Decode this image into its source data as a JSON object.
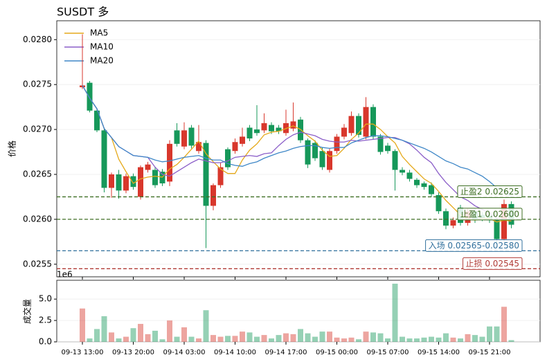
{
  "chart_data": {
    "type": "candlestick",
    "title": "SUSDT  多",
    "ylabel": "价格",
    "categories": [
      "09-13 13:00",
      null,
      null,
      null,
      null,
      null,
      null,
      "09-13 20:00",
      null,
      null,
      null,
      null,
      null,
      null,
      "09-14 03:00",
      null,
      null,
      null,
      null,
      null,
      null,
      "09-14 10:00",
      null,
      null,
      null,
      null,
      null,
      null,
      "09-14 17:00",
      null,
      null,
      null,
      null,
      null,
      null,
      "09-15 00:00",
      null,
      null,
      null,
      null,
      null,
      null,
      "09-15 07:00",
      null,
      null,
      null,
      null,
      null,
      null,
      "09-15 14:00",
      null,
      null,
      null,
      null,
      null,
      null,
      "09-15 21:00",
      null,
      null,
      null
    ],
    "open": [
      0.02747,
      0.02752,
      0.02721,
      0.02699,
      0.02635,
      0.0265,
      0.02632,
      0.02648,
      0.02625,
      0.02655,
      0.02655,
      0.02653,
      0.02642,
      0.02699,
      0.02681,
      0.02702,
      0.02676,
      0.02685,
      0.02615,
      0.02638,
      0.02678,
      0.02676,
      0.02684,
      0.02702,
      0.027,
      0.02699,
      0.02705,
      0.02702,
      0.02696,
      0.02701,
      0.02711,
      0.02688,
      0.02685,
      0.02676,
      0.02655,
      0.02676,
      0.02692,
      0.02696,
      0.02715,
      0.02692,
      0.02725,
      0.02692,
      0.02682,
      0.02676,
      0.02655,
      0.02652,
      0.02644,
      0.0264,
      0.02638,
      0.02627,
      0.02609,
      0.02593,
      0.02613,
      0.02596,
      0.02609,
      0.02605,
      0.02604,
      0.02599,
      0.02578,
      0.02617
    ],
    "high": [
      0.02806,
      0.02754,
      0.02723,
      0.02701,
      0.02652,
      0.02655,
      0.02651,
      0.02651,
      0.0266,
      0.02664,
      0.02658,
      0.02656,
      0.02688,
      0.02707,
      0.02708,
      0.02705,
      0.02705,
      0.02688,
      0.0264,
      0.02663,
      0.0268,
      0.0269,
      0.02702,
      0.02705,
      0.02727,
      0.02718,
      0.02708,
      0.02705,
      0.02722,
      0.0273,
      0.02714,
      0.0269,
      0.02688,
      0.0268,
      0.02679,
      0.02695,
      0.02706,
      0.0272,
      0.02718,
      0.02736,
      0.02728,
      0.02695,
      0.02685,
      0.02678,
      0.02658,
      0.02655,
      0.02646,
      0.02642,
      0.02641,
      0.0263,
      0.02612,
      0.02602,
      0.02616,
      0.02612,
      0.02612,
      0.02608,
      0.02607,
      0.02602,
      0.02622,
      0.0262
    ],
    "low": [
      0.02745,
      0.02719,
      0.02697,
      0.0263,
      0.02624,
      0.02623,
      0.02629,
      0.02633,
      0.02622,
      0.02652,
      0.02635,
      0.02637,
      0.02637,
      0.02681,
      0.02678,
      0.02679,
      0.02673,
      0.02568,
      0.0261,
      0.02635,
      0.02655,
      0.02673,
      0.02681,
      0.02687,
      0.02693,
      0.02696,
      0.02695,
      0.02695,
      0.02693,
      0.02698,
      0.02685,
      0.02657,
      0.02665,
      0.02655,
      0.02652,
      0.02673,
      0.02689,
      0.02693,
      0.02691,
      0.02689,
      0.02689,
      0.02672,
      0.02673,
      0.02632,
      0.02649,
      0.02642,
      0.02635,
      0.02633,
      0.02625,
      0.02606,
      0.02589,
      0.0259,
      0.02593,
      0.02593,
      0.02596,
      0.02598,
      0.02596,
      0.02574,
      0.02575,
      0.0259
    ],
    "close": [
      0.02749,
      0.02721,
      0.02699,
      0.02635,
      0.0265,
      0.02632,
      0.02648,
      0.02636,
      0.02658,
      0.02661,
      0.02638,
      0.0264,
      0.02684,
      0.02684,
      0.02699,
      0.02682,
      0.02686,
      0.02615,
      0.02638,
      0.02658,
      0.02658,
      0.02686,
      0.02692,
      0.0269,
      0.02696,
      0.02707,
      0.02698,
      0.02698,
      0.02707,
      0.02709,
      0.02688,
      0.02661,
      0.02668,
      0.02658,
      0.02676,
      0.02692,
      0.02702,
      0.02715,
      0.02694,
      0.02725,
      0.02692,
      0.02675,
      0.02676,
      0.02655,
      0.02652,
      0.02645,
      0.02638,
      0.02636,
      0.02628,
      0.02609,
      0.02593,
      0.02599,
      0.02596,
      0.02609,
      0.02599,
      0.02601,
      0.02599,
      0.02578,
      0.02617,
      0.02594
    ],
    "up_color": "#d8372c",
    "down_color": "#16985a",
    "series": [
      {
        "name": "MA5",
        "color": "#e5a91a",
        "values": [
          0.02749,
          0.02735,
          0.02723,
          0.02701,
          0.02691,
          0.02667,
          0.02653,
          0.0264,
          0.02645,
          0.02647,
          0.02648,
          0.02647,
          0.02656,
          0.02661,
          0.02669,
          0.02678,
          0.02687,
          0.02673,
          0.02664,
          0.02656,
          0.02651,
          0.02651,
          0.02666,
          0.02677,
          0.02684,
          0.02694,
          0.02697,
          0.02698,
          0.02701,
          0.02704,
          0.027,
          0.02693,
          0.02687,
          0.02677,
          0.0267,
          0.02671,
          0.02679,
          0.02689,
          0.02696,
          0.02706,
          0.02706,
          0.027,
          0.02692,
          0.02685,
          0.0267,
          0.02661,
          0.02653,
          0.02645,
          0.0264,
          0.02631,
          0.02621,
          0.02613,
          0.02605,
          0.02601,
          0.02599,
          0.02601,
          0.02601,
          0.02597,
          0.02599,
          0.02598
        ]
      },
      {
        "name": "MA10",
        "color": "#8b5ec8",
        "values": [
          0.02749,
          0.02735,
          0.02723,
          0.02701,
          0.02691,
          0.02681,
          0.02676,
          0.02671,
          0.0267,
          0.02669,
          0.02658,
          0.0265,
          0.02648,
          0.02653,
          0.02658,
          0.02663,
          0.02667,
          0.02665,
          0.02663,
          0.02663,
          0.02665,
          0.02669,
          0.0267,
          0.02671,
          0.0267,
          0.02673,
          0.02674,
          0.02682,
          0.02689,
          0.02694,
          0.02697,
          0.02695,
          0.02693,
          0.02689,
          0.02687,
          0.02686,
          0.02686,
          0.02688,
          0.02687,
          0.02688,
          0.02689,
          0.0269,
          0.02691,
          0.02691,
          0.02688,
          0.02684,
          0.02677,
          0.02669,
          0.02663,
          0.02651,
          0.02641,
          0.02633,
          0.02625,
          0.02621,
          0.02615,
          0.02611,
          0.02607,
          0.02601,
          0.026,
          0.02599
        ]
      },
      {
        "name": "MA20",
        "color": "#3e87c7",
        "values": [
          0.02749,
          0.02735,
          0.02723,
          0.02701,
          0.02691,
          0.02681,
          0.02676,
          0.02671,
          0.0267,
          0.02669,
          0.02666,
          0.02664,
          0.02665,
          0.02667,
          0.02669,
          0.0267,
          0.02671,
          0.02668,
          0.02666,
          0.02666,
          0.02662,
          0.0266,
          0.02659,
          0.02662,
          0.02664,
          0.02668,
          0.02671,
          0.02674,
          0.02676,
          0.02679,
          0.02681,
          0.02682,
          0.02682,
          0.0268,
          0.02679,
          0.0268,
          0.0268,
          0.02685,
          0.02688,
          0.02691,
          0.02693,
          0.02693,
          0.02692,
          0.0269,
          0.02688,
          0.02685,
          0.02682,
          0.02679,
          0.02675,
          0.0267,
          0.02665,
          0.02662,
          0.02658,
          0.02656,
          0.02652,
          0.02648,
          0.02642,
          0.02635,
          0.02632,
          0.02625
        ]
      }
    ],
    "ylim": [
      0.02536,
      0.02821
    ],
    "yticks": [
      0.0255,
      {
        "value": 0.026,
        "label": "0.0260"
      },
      0.0265,
      {
        "value": 0.027,
        "label": "0.0270"
      },
      0.0275,
      {
        "value": 0.028,
        "label": "0.0280"
      }
    ],
    "grid": true,
    "legend": "upper left",
    "levels": [
      {
        "label": "止盈2 0.02625",
        "value": 0.02625,
        "color": "#3d6e22"
      },
      {
        "label": "止盈1 0.02600",
        "value": 0.026,
        "color": "#3d6e22"
      },
      {
        "label": "入场 0.02565-0.02580",
        "value": 0.02565,
        "color": "#2f6f9c"
      },
      {
        "label": "止损 0.02545",
        "value": 0.02545,
        "color": "#b03a35"
      }
    ],
    "volume": {
      "ylabel": "成交量",
      "offset_label": "1e6",
      "values": [
        3.9,
        0.4,
        1.5,
        3.0,
        1.1,
        0.4,
        0.6,
        1.6,
        2.1,
        0.9,
        1.3,
        0.3,
        2.5,
        0.6,
        1.7,
        0.6,
        0.4,
        3.7,
        0.8,
        0.6,
        0.7,
        0.7,
        1.2,
        1.1,
        0.6,
        0.8,
        0.4,
        0.8,
        1.0,
        0.9,
        1.5,
        1.0,
        0.6,
        1.2,
        1.2,
        0.5,
        0.4,
        0.5,
        0.3,
        1.2,
        1.1,
        1.0,
        0.4,
        6.8,
        0.6,
        0.4,
        0.4,
        0.5,
        0.6,
        0.5,
        1.0,
        0.5,
        0.4,
        0.9,
        0.8,
        0.6,
        1.8,
        1.8,
        4.1,
        0.2
      ],
      "ylim": [
        0,
        7.2
      ],
      "yticks": [
        {
          "value": 0,
          "label": "0.0"
        },
        2.5,
        {
          "value": 5,
          "label": "5.0"
        }
      ]
    }
  }
}
